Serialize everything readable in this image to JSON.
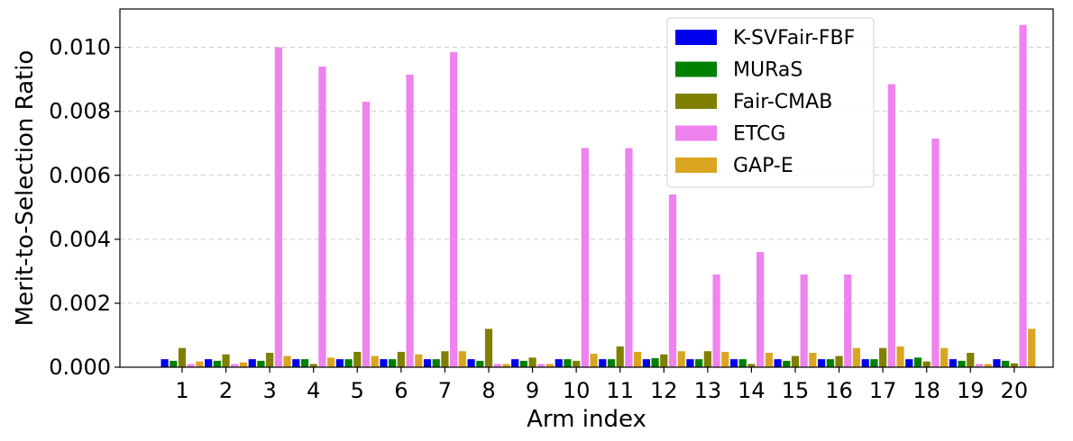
{
  "chart_data": {
    "type": "bar",
    "title": "",
    "xlabel": "Arm index",
    "ylabel": "Merit-to-Selection Ratio",
    "categories": [
      "1",
      "2",
      "3",
      "4",
      "5",
      "6",
      "7",
      "8",
      "9",
      "10",
      "11",
      "12",
      "13",
      "14",
      "15",
      "16",
      "17",
      "18",
      "19",
      "20"
    ],
    "ylim": [
      0,
      0.0112
    ],
    "yticks": [
      0.0,
      0.002,
      0.004,
      0.006,
      0.008,
      0.01
    ],
    "ytick_labels": [
      "0.000",
      "0.002",
      "0.004",
      "0.006",
      "0.008",
      "0.010"
    ],
    "grid": "horizontal dashed",
    "legend_position": "upper-middle-right",
    "series": [
      {
        "name": "K-SVFair-FBF",
        "color": "#0000ee",
        "values": [
          0.00025,
          0.00025,
          0.00025,
          0.00025,
          0.00025,
          0.00025,
          0.00025,
          0.00025,
          0.00025,
          0.00025,
          0.00025,
          0.00025,
          0.00025,
          0.00025,
          0.00025,
          0.00025,
          0.00025,
          0.00025,
          0.00025,
          0.00025
        ]
      },
      {
        "name": "MURaS",
        "color": "#008000",
        "values": [
          0.0002,
          0.0002,
          0.0002,
          0.00025,
          0.00025,
          0.00025,
          0.00025,
          0.0002,
          0.0002,
          0.00025,
          0.00025,
          0.00028,
          0.00025,
          0.00025,
          0.0002,
          0.00025,
          0.00025,
          0.0003,
          0.0002,
          0.0002
        ]
      },
      {
        "name": "Fair-CMAB",
        "color": "#808000",
        "values": [
          0.0006,
          0.0004,
          0.00045,
          0.0001,
          0.00048,
          0.00048,
          0.0005,
          0.0012,
          0.0003,
          0.0002,
          0.00065,
          0.0004,
          0.0005,
          0.0001,
          0.00035,
          0.00035,
          0.0006,
          0.00018,
          0.00045,
          0.00012
        ]
      },
      {
        "name": "ETCG",
        "color": "#ee82ee",
        "values": [
          0.0001,
          0.0001,
          0.01,
          0.0094,
          0.0083,
          0.00915,
          0.00985,
          0.0001,
          0.0001,
          0.00685,
          0.00685,
          0.0054,
          0.0029,
          0.0036,
          0.0029,
          0.0029,
          0.00885,
          0.00715,
          0.0001,
          0.0107
        ]
      },
      {
        "name": "GAP-E",
        "color": "#daa520",
        "values": [
          0.00018,
          0.00015,
          0.00035,
          0.0003,
          0.00035,
          0.0004,
          0.0005,
          0.0001,
          0.0001,
          0.00042,
          0.00048,
          0.0005,
          0.00048,
          0.00045,
          0.00045,
          0.0006,
          0.00065,
          0.0006,
          0.0001,
          0.0012
        ]
      }
    ]
  }
}
